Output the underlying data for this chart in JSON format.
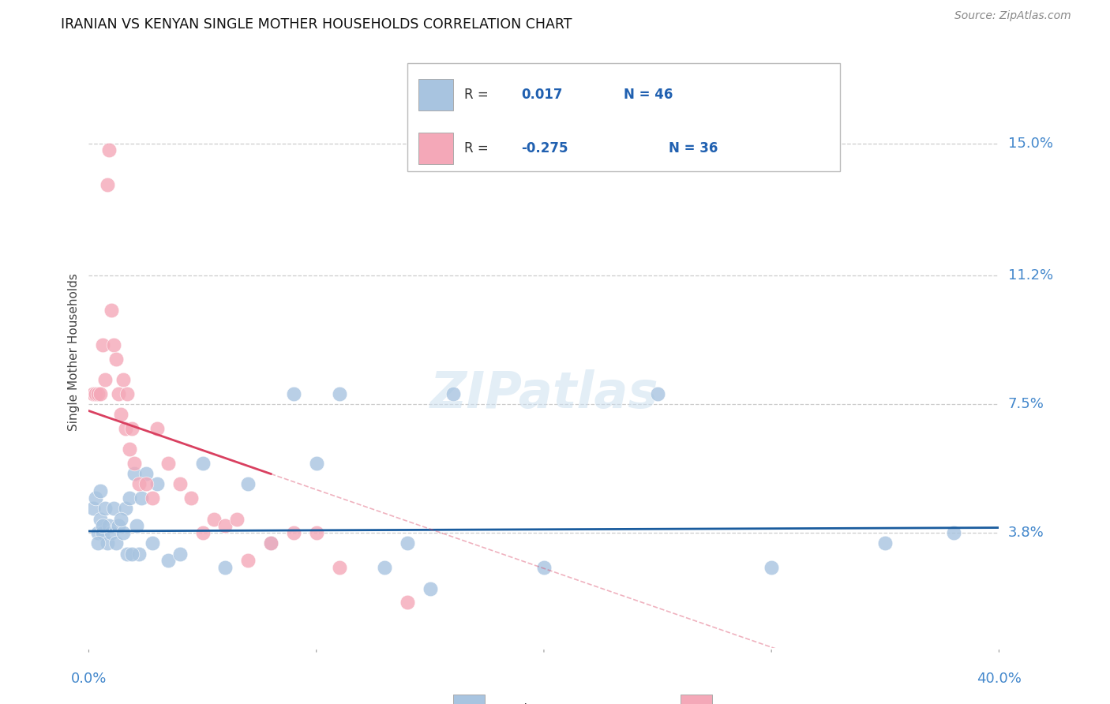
{
  "title": "IRANIAN VS KENYAN SINGLE MOTHER HOUSEHOLDS CORRELATION CHART",
  "source": "Source: ZipAtlas.com",
  "ylabel": "Single Mother Households",
  "ytick_labels": [
    "3.8%",
    "7.5%",
    "11.2%",
    "15.0%"
  ],
  "ytick_values": [
    3.8,
    7.5,
    11.2,
    15.0
  ],
  "xlim": [
    0.0,
    40.0
  ],
  "ylim": [
    0.5,
    17.5
  ],
  "iranian_R": 0.017,
  "iranian_N": 46,
  "kenyan_R": -0.275,
  "kenyan_N": 36,
  "iranian_color": "#a8c4e0",
  "kenyan_color": "#f4a8b8",
  "iranian_line_color": "#1a5c9e",
  "kenyan_line_color": "#d94060",
  "iranians_x": [
    0.2,
    0.3,
    0.4,
    0.5,
    0.6,
    0.7,
    0.8,
    0.9,
    1.0,
    1.1,
    1.2,
    1.3,
    1.5,
    1.6,
    1.7,
    1.8,
    2.0,
    2.1,
    2.2,
    2.5,
    3.0,
    3.5,
    4.0,
    5.0,
    6.0,
    7.0,
    8.0,
    9.0,
    10.0,
    11.0,
    13.0,
    14.0,
    15.0,
    16.0,
    20.0,
    25.0,
    30.0,
    35.0,
    38.0,
    0.4,
    0.5,
    0.6,
    1.4,
    1.9,
    2.3,
    2.8
  ],
  "iranians_y": [
    4.5,
    4.8,
    3.8,
    4.2,
    3.8,
    4.5,
    3.5,
    4.0,
    3.8,
    4.5,
    3.5,
    4.0,
    3.8,
    4.5,
    3.2,
    4.8,
    5.5,
    4.0,
    3.2,
    5.5,
    5.2,
    3.0,
    3.2,
    5.8,
    2.8,
    5.2,
    3.5,
    7.8,
    5.8,
    7.8,
    2.8,
    3.5,
    2.2,
    7.8,
    2.8,
    7.8,
    2.8,
    3.5,
    3.8,
    3.5,
    5.0,
    4.0,
    4.2,
    3.2,
    4.8,
    3.5
  ],
  "kenyans_x": [
    0.2,
    0.3,
    0.4,
    0.5,
    0.6,
    0.7,
    0.8,
    0.9,
    1.0,
    1.1,
    1.2,
    1.3,
    1.4,
    1.5,
    1.6,
    1.7,
    1.8,
    1.9,
    2.0,
    2.2,
    2.5,
    2.8,
    3.0,
    3.5,
    4.0,
    4.5,
    5.0,
    5.5,
    6.0,
    6.5,
    7.0,
    8.0,
    9.0,
    10.0,
    11.0,
    14.0
  ],
  "kenyans_y": [
    7.8,
    7.8,
    7.8,
    7.8,
    9.2,
    8.2,
    13.8,
    14.8,
    10.2,
    9.2,
    8.8,
    7.8,
    7.2,
    8.2,
    6.8,
    7.8,
    6.2,
    6.8,
    5.8,
    5.2,
    5.2,
    4.8,
    6.8,
    5.8,
    5.2,
    4.8,
    3.8,
    4.2,
    4.0,
    4.2,
    3.0,
    3.5,
    3.8,
    3.8,
    2.8,
    1.8
  ],
  "kenyan_solid_x_end": 8.0,
  "iranian_line_y": 3.85
}
